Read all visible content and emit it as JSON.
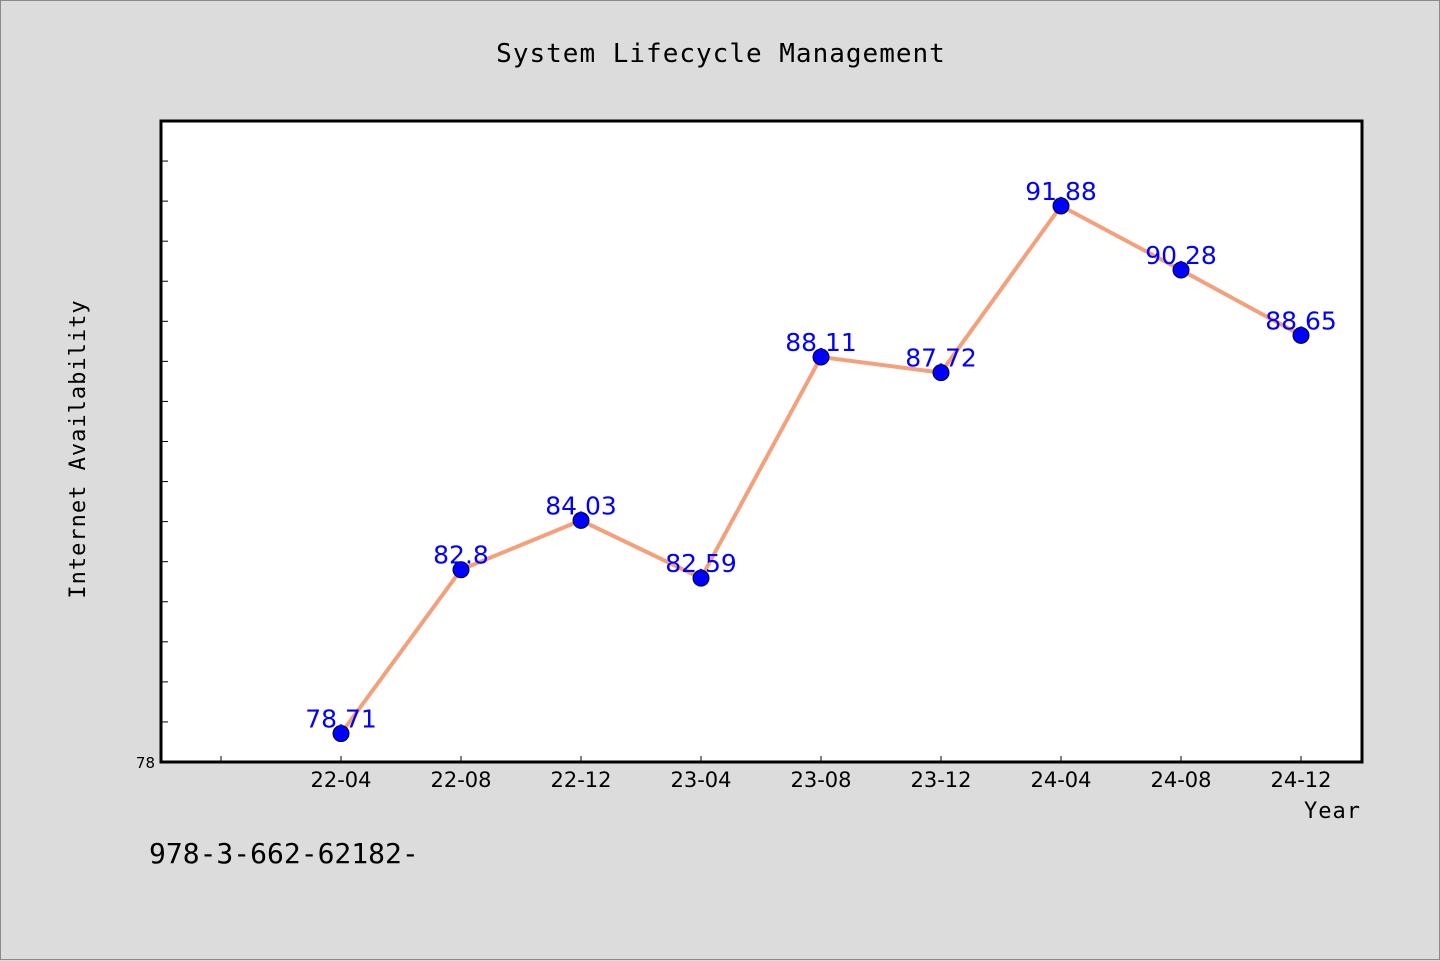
{
  "chart_data": {
    "type": "line",
    "title": "System Lifecycle Management",
    "xlabel": "Year",
    "ylabel": "Internet Availability",
    "categories": [
      "22-04",
      "22-08",
      "22-12",
      "23-04",
      "23-08",
      "23-12",
      "24-04",
      "24-08",
      "24-12"
    ],
    "series": [
      {
        "values": [
          78.71,
          82.8,
          84.03,
          82.59,
          88.11,
          87.72,
          91.88,
          90.28,
          88.65
        ]
      }
    ],
    "data_labels": [
      "78.71",
      "82.8",
      "84.03",
      "82.59",
      "88.11",
      "87.72",
      "91.88",
      "90.28",
      "88.65"
    ],
    "ylim": [
      78,
      94
    ],
    "yticks": [
      78
    ],
    "grid": false,
    "legend": "none",
    "colors": {
      "line": "#f4a07a",
      "marker": "#0000ff",
      "data_label": "#0000ff",
      "plot_background": "#ffffff",
      "page_background": "#dcdcdc"
    }
  },
  "footer": {
    "text": "978-3-662-62182-"
  }
}
